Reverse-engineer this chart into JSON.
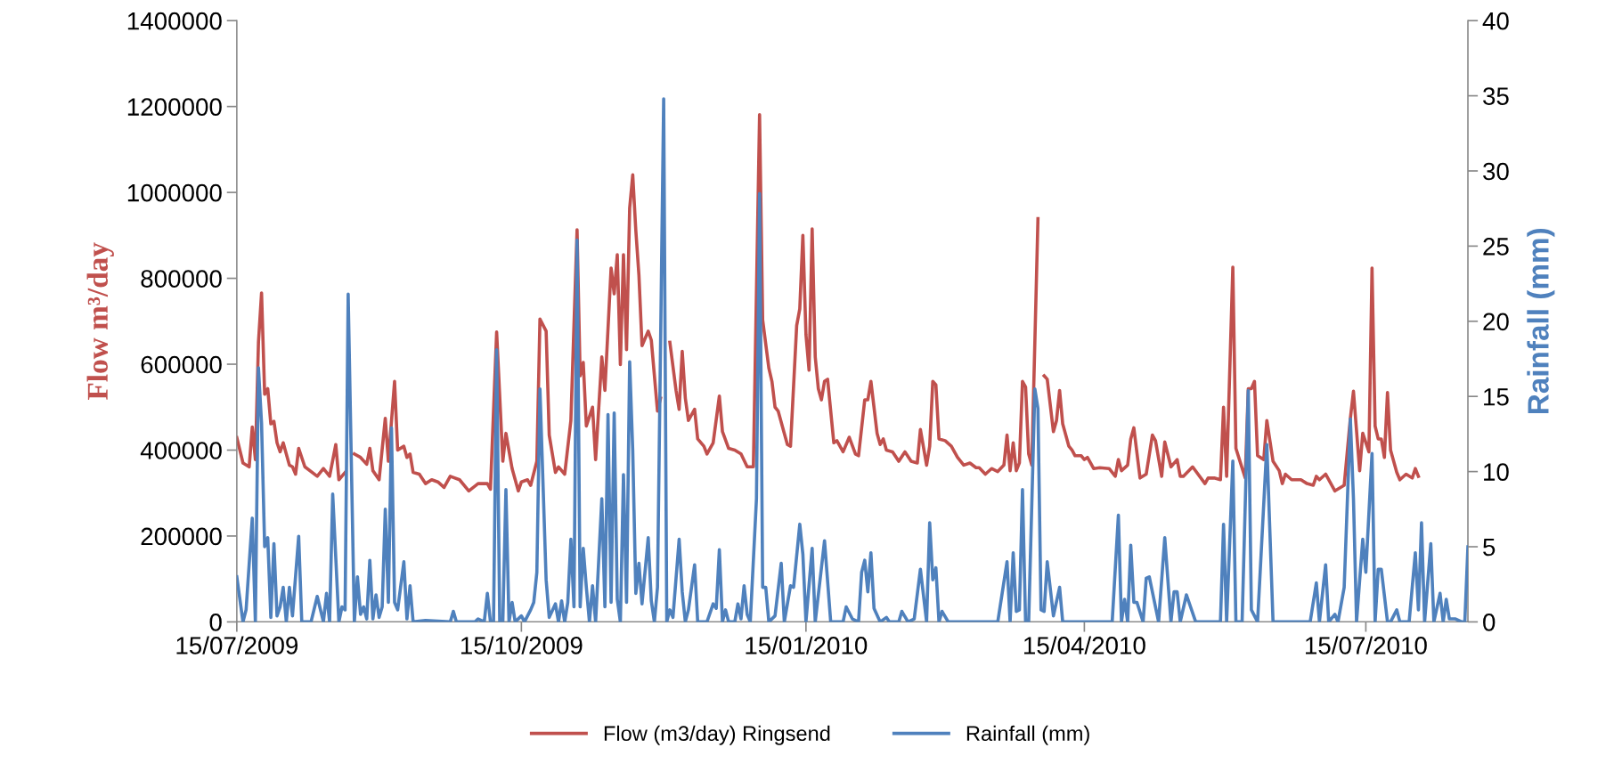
{
  "chart_data": {
    "type": "line",
    "ylabel": "Flow m³/day",
    "y2label": "Rainfall (mm)",
    "legend": "bottom",
    "grid": false,
    "marker": "none",
    "line_style": "solid",
    "xlim": [
      "2009-07-15",
      "2010-08-17"
    ],
    "xticks": [
      {
        "value": "2009-07-15",
        "label": "15/07/2009"
      },
      {
        "value": "2009-10-15",
        "label": "15/10/2009"
      },
      {
        "value": "2010-01-15",
        "label": "15/01/2010"
      },
      {
        "value": "2010-04-15",
        "label": "15/04/2010"
      },
      {
        "value": "2010-07-15",
        "label": "15/07/2010"
      }
    ],
    "ylim": [
      0,
      1400000
    ],
    "yticks": [
      0,
      200000,
      400000,
      600000,
      800000,
      1000000,
      1200000,
      1400000
    ],
    "y2lim": [
      0,
      40
    ],
    "y2ticks": [
      0,
      5,
      10,
      15,
      20,
      25,
      30,
      35,
      40
    ],
    "series": [
      {
        "name": "Flow (m3/day) Ringsend",
        "color": "#c0504d",
        "axis": "y",
        "x": [
          "2009-07-15",
          "2009-07-17",
          "2009-07-19",
          "2009-07-20",
          "2009-07-21",
          "2009-07-22",
          "2009-07-23",
          "2009-07-24",
          "2009-07-25",
          "2009-07-26",
          "2009-07-27",
          "2009-07-28",
          "2009-07-29",
          "2009-07-30",
          "2009-08-01",
          "2009-08-02",
          "2009-08-03",
          "2009-08-04",
          "2009-08-06",
          "2009-08-10",
          "2009-08-12",
          "2009-08-14",
          "2009-08-16",
          "2009-08-17",
          "2009-08-19",
          "2009-08-20",
          "2009-08-22",
          "2009-08-24",
          "2009-08-26",
          "2009-08-27",
          "2009-08-28",
          "2009-08-30",
          "2009-09-01",
          "2009-09-02",
          "2009-09-04",
          "2009-09-05",
          "2009-09-07",
          "2009-09-08",
          "2009-09-09",
          "2009-09-10",
          "2009-09-12",
          "2009-09-14",
          "2009-09-16",
          "2009-09-18",
          "2009-09-20",
          "2009-09-22",
          "2009-09-25",
          "2009-09-28",
          "2009-10-01",
          "2009-10-04",
          "2009-10-05",
          "2009-10-07",
          "2009-10-09",
          "2009-10-10",
          "2009-10-12",
          "2009-10-14",
          "2009-10-15",
          "2009-10-17",
          "2009-10-18",
          "2009-10-20",
          "2009-10-21",
          "2009-10-23",
          "2009-10-24",
          "2009-10-26",
          "2009-10-27",
          "2009-10-29",
          "2009-10-31",
          "2009-11-02",
          "2009-11-03",
          "2009-11-04",
          "2009-11-05",
          "2009-11-07",
          "2009-11-08",
          "2009-11-10",
          "2009-11-11",
          "2009-11-13",
          "2009-11-14",
          "2009-11-15",
          "2009-11-16",
          "2009-11-17",
          "2009-11-18",
          "2009-11-19",
          "2009-11-20",
          "2009-11-21",
          "2009-11-22",
          "2009-11-23",
          "2009-11-25",
          "2009-11-26",
          "2009-11-28",
          "2009-11-29",
          "2009-11-30",
          "2009-12-02",
          "2009-12-04",
          "2009-12-05",
          "2009-12-06",
          "2009-12-07",
          "2009-12-08",
          "2009-12-10",
          "2009-12-11",
          "2009-12-13",
          "2009-12-14",
          "2009-12-16",
          "2009-12-18",
          "2009-12-19",
          "2009-12-21",
          "2009-12-23",
          "2009-12-25",
          "2009-12-27",
          "2009-12-29",
          "2009-12-31",
          "2010-01-01",
          "2010-01-03",
          "2010-01-04",
          "2010-01-05",
          "2010-01-06",
          "2010-01-08",
          "2010-01-09",
          "2010-01-10",
          "2010-01-12",
          "2010-01-13",
          "2010-01-14",
          "2010-01-15",
          "2010-01-16",
          "2010-01-17",
          "2010-01-18",
          "2010-01-19",
          "2010-01-20",
          "2010-01-21",
          "2010-01-22",
          "2010-01-24",
          "2010-01-25",
          "2010-01-27",
          "2010-01-29",
          "2010-01-31",
          "2010-02-01",
          "2010-02-03",
          "2010-02-04",
          "2010-02-05",
          "2010-02-07",
          "2010-02-08",
          "2010-02-09",
          "2010-02-10",
          "2010-02-12",
          "2010-02-14",
          "2010-02-16",
          "2010-02-18",
          "2010-02-20",
          "2010-02-21",
          "2010-02-23",
          "2010-02-24",
          "2010-02-25",
          "2010-02-26",
          "2010-02-27",
          "2010-03-01",
          "2010-03-03",
          "2010-03-05",
          "2010-03-07",
          "2010-03-09",
          "2010-03-11",
          "2010-03-12",
          "2010-03-14",
          "2010-03-16",
          "2010-03-18",
          "2010-03-20",
          "2010-03-21",
          "2010-03-22",
          "2010-03-23",
          "2010-03-24",
          "2010-03-25",
          "2010-03-26",
          "2010-03-27",
          "2010-03-28",
          "2010-03-29",
          "2010-03-31",
          "2010-04-01",
          "2010-04-02",
          "2010-04-03",
          "2010-04-05",
          "2010-04-06",
          "2010-04-07",
          "2010-04-08",
          "2010-04-10",
          "2010-04-11",
          "2010-04-12",
          "2010-04-14",
          "2010-04-15",
          "2010-04-16",
          "2010-04-18",
          "2010-04-20",
          "2010-04-23",
          "2010-04-25",
          "2010-04-26",
          "2010-04-27",
          "2010-04-29",
          "2010-04-30",
          "2010-05-01",
          "2010-05-03",
          "2010-05-05",
          "2010-05-07",
          "2010-05-08",
          "2010-05-10",
          "2010-05-11",
          "2010-05-13",
          "2010-05-15",
          "2010-05-16",
          "2010-05-17",
          "2010-05-20",
          "2010-05-24",
          "2010-05-25",
          "2010-05-27",
          "2010-05-29",
          "2010-05-30",
          "2010-05-31",
          "2010-06-02",
          "2010-06-03",
          "2010-06-06",
          "2010-06-07",
          "2010-06-08",
          "2010-06-09",
          "2010-06-10",
          "2010-06-12",
          "2010-06-13",
          "2010-06-15",
          "2010-06-17",
          "2010-06-18",
          "2010-06-19",
          "2010-06-21",
          "2010-06-24",
          "2010-06-26",
          "2010-06-28",
          "2010-06-29",
          "2010-06-30",
          "2010-07-02",
          "2010-07-05",
          "2010-07-08",
          "2010-07-10",
          "2010-07-11",
          "2010-07-13",
          "2010-07-14",
          "2010-07-16",
          "2010-07-17",
          "2010-07-18",
          "2010-07-19",
          "2010-07-20",
          "2010-07-21",
          "2010-07-22",
          "2010-07-23",
          "2010-07-25",
          "2010-07-26",
          "2010-07-28",
          "2010-07-30",
          "2010-07-31",
          "2010-08-01"
        ],
        "values": [
          429000,
          370000,
          361000,
          454000,
          378000,
          651000,
          766000,
          530000,
          543000,
          461000,
          467000,
          417000,
          396000,
          417000,
          365000,
          361000,
          344000,
          404000,
          361000,
          339000,
          357000,
          339000,
          413000,
          331000,
          348000,
          null,
          391000,
          383000,
          367000,
          404000,
          352000,
          331000,
          474000,
          374000,
          560000,
          400000,
          409000,
          383000,
          391000,
          348000,
          344000,
          322000,
          331000,
          326000,
          313000,
          339000,
          331000,
          305000,
          322000,
          322000,
          309000,
          675000,
          374000,
          439000,
          357000,
          305000,
          326000,
          331000,
          318000,
          374000,
          705000,
          677000,
          435000,
          348000,
          361000,
          344000,
          469000,
          913000,
          573000,
          604000,
          456000,
          500000,
          378000,
          617000,
          539000,
          824000,
          764000,
          855000,
          599000,
          855000,
          634000,
          963000,
          1041000,
          911000,
          807000,
          643000,
          677000,
          656000,
          491000,
          521000,
          null,
          651000,
          539000,
          495000,
          630000,
          521000,
          469000,
          495000,
          426000,
          409000,
          391000,
          417000,
          526000,
          443000,
          404000,
          400000,
          391000,
          361000,
          361000,
          1181000,
          703000,
          591000,
          560000,
          500000,
          491000,
          439000,
          413000,
          409000,
          690000,
          729000,
          900000,
          669000,
          586000,
          915000,
          617000,
          543000,
          517000,
          560000,
          565000,
          417000,
          422000,
          396000,
          430000,
          391000,
          387000,
          517000,
          517000,
          560000,
          439000,
          413000,
          426000,
          400000,
          396000,
          374000,
          396000,
          374000,
          370000,
          448000,
          365000,
          409000,
          560000,
          552000,
          426000,
          422000,
          409000,
          383000,
          365000,
          370000,
          359000,
          359000,
          344000,
          357000,
          350000,
          365000,
          435000,
          352000,
          417000,
          352000,
          370000,
          560000,
          547000,
          391000,
          365000,
          939000,
          null,
          573000,
          565000,
          443000,
          469000,
          539000,
          461000,
          409000,
          400000,
          387000,
          387000,
          378000,
          383000,
          357000,
          359000,
          357000,
          339000,
          378000,
          352000,
          365000,
          426000,
          452000,
          335000,
          344000,
          435000,
          422000,
          339000,
          419000,
          361000,
          378000,
          339000,
          339000,
          361000,
          322000,
          335000,
          335000,
          331000,
          500000,
          339000,
          826000,
          404000,
          335000,
          543000,
          543000,
          560000,
          387000,
          378000,
          469000,
          374000,
          352000,
          322000,
          344000,
          331000,
          331000,
          322000,
          318000,
          339000,
          331000,
          344000,
          305000,
          318000,
          474000,
          537000,
          352000,
          439000,
          396000,
          824000,
          456000,
          426000,
          426000,
          383000,
          534000,
          400000,
          348000,
          331000,
          344000,
          335000,
          357000,
          339000
        ]
      },
      {
        "name": "Rainfall (mm)",
        "color": "#4f81bd",
        "axis": "y2",
        "x": [
          "2009-07-15",
          "2009-07-17",
          "2009-07-18",
          "2009-07-20",
          "2009-07-21",
          "2009-07-22",
          "2009-07-23",
          "2009-07-24",
          "2009-07-25",
          "2009-07-26",
          "2009-07-27",
          "2009-07-28",
          "2009-07-29",
          "2009-07-30",
          "2009-07-31",
          "2009-08-01",
          "2009-08-02",
          "2009-08-04",
          "2009-08-05",
          "2009-08-08",
          "2009-08-10",
          "2009-08-12",
          "2009-08-13",
          "2009-08-14",
          "2009-08-15",
          "2009-08-17",
          "2009-08-18",
          "2009-08-19",
          "2009-08-20",
          "2009-08-22",
          "2009-08-23",
          "2009-08-24",
          "2009-08-25",
          "2009-08-26",
          "2009-08-27",
          "2009-08-28",
          "2009-08-29",
          "2009-08-30",
          "2009-08-31",
          "2009-09-01",
          "2009-09-02",
          "2009-09-03",
          "2009-09-04",
          "2009-09-05",
          "2009-09-07",
          "2009-09-08",
          "2009-09-09",
          "2009-09-10",
          "2009-09-14",
          "2009-09-22",
          "2009-09-23",
          "2009-09-24",
          "2009-09-30",
          "2009-10-01",
          "2009-10-03",
          "2009-10-04",
          "2009-10-05",
          "2009-10-06",
          "2009-10-07",
          "2009-10-08",
          "2009-10-09",
          "2009-10-10",
          "2009-10-11",
          "2009-10-12",
          "2009-10-13",
          "2009-10-15",
          "2009-10-16",
          "2009-10-18",
          "2009-10-19",
          "2009-10-20",
          "2009-10-21",
          "2009-10-23",
          "2009-10-24",
          "2009-10-26",
          "2009-10-27",
          "2009-10-28",
          "2009-10-29",
          "2009-10-30",
          "2009-10-31",
          "2009-11-01",
          "2009-11-02",
          "2009-11-03",
          "2009-11-04",
          "2009-11-05",
          "2009-11-06",
          "2009-11-07",
          "2009-11-08",
          "2009-11-10",
          "2009-11-11",
          "2009-11-12",
          "2009-11-13",
          "2009-11-14",
          "2009-11-15",
          "2009-11-16",
          "2009-11-17",
          "2009-11-18",
          "2009-11-19",
          "2009-11-20",
          "2009-11-21",
          "2009-11-22",
          "2009-11-23",
          "2009-11-25",
          "2009-11-26",
          "2009-11-27",
          "2009-11-28",
          "2009-11-30",
          "2009-12-01",
          "2009-12-02",
          "2009-12-03",
          "2009-12-05",
          "2009-12-06",
          "2009-12-07",
          "2009-12-08",
          "2009-12-10",
          "2009-12-11",
          "2009-12-14",
          "2009-12-16",
          "2009-12-17",
          "2009-12-18",
          "2009-12-19",
          "2009-12-20",
          "2009-12-21",
          "2009-12-23",
          "2009-12-24",
          "2009-12-25",
          "2009-12-26",
          "2009-12-27",
          "2009-12-28",
          "2009-12-30",
          "2009-12-31",
          "2010-01-01",
          "2010-01-02",
          "2010-01-03",
          "2010-01-05",
          "2010-01-07",
          "2010-01-08",
          "2010-01-10",
          "2010-01-11",
          "2010-01-13",
          "2010-01-14",
          "2010-01-15",
          "2010-01-17",
          "2010-01-18",
          "2010-01-21",
          "2010-01-23",
          "2010-01-27",
          "2010-01-28",
          "2010-01-30",
          "2010-02-01",
          "2010-02-02",
          "2010-02-03",
          "2010-02-04",
          "2010-02-05",
          "2010-02-06",
          "2010-02-08",
          "2010-02-10",
          "2010-02-11",
          "2010-02-14",
          "2010-02-15",
          "2010-02-17",
          "2010-02-19",
          "2010-02-21",
          "2010-02-23",
          "2010-02-24",
          "2010-02-25",
          "2010-02-26",
          "2010-02-27",
          "2010-02-28",
          "2010-03-02",
          "2010-03-18",
          "2010-03-21",
          "2010-03-22",
          "2010-03-23",
          "2010-03-24",
          "2010-03-25",
          "2010-03-26",
          "2010-03-27",
          "2010-03-28",
          "2010-03-30",
          "2010-03-31",
          "2010-04-01",
          "2010-04-02",
          "2010-04-03",
          "2010-04-05",
          "2010-04-07",
          "2010-04-08",
          "2010-04-24",
          "2010-04-26",
          "2010-04-27",
          "2010-04-28",
          "2010-04-29",
          "2010-04-30",
          "2010-05-01",
          "2010-05-02",
          "2010-05-04",
          "2010-05-05",
          "2010-05-06",
          "2010-05-08",
          "2010-05-09",
          "2010-05-11",
          "2010-05-13",
          "2010-05-14",
          "2010-05-15",
          "2010-05-16",
          "2010-05-18",
          "2010-05-21",
          "2010-05-29",
          "2010-05-30",
          "2010-05-31",
          "2010-06-02",
          "2010-06-03",
          "2010-06-05",
          "2010-06-07",
          "2010-06-08",
          "2010-06-10",
          "2010-06-13",
          "2010-06-15",
          "2010-06-27",
          "2010-06-29",
          "2010-06-30",
          "2010-07-02",
          "2010-07-03",
          "2010-07-05",
          "2010-07-06",
          "2010-07-08",
          "2010-07-10",
          "2010-07-11",
          "2010-07-12",
          "2010-07-14",
          "2010-07-15",
          "2010-07-17",
          "2010-07-18",
          "2010-07-19",
          "2010-07-20",
          "2010-07-22",
          "2010-07-23",
          "2010-07-25",
          "2010-07-26",
          "2010-07-29",
          "2010-07-31",
          "2010-08-01",
          "2010-08-02",
          "2010-08-03",
          "2010-08-05",
          "2010-08-06",
          "2010-08-08",
          "2010-08-09",
          "2010-08-10",
          "2010-08-11",
          "2010-08-13",
          "2010-08-15",
          "2010-08-16",
          "2010-08-17"
        ],
        "values": [
          3.0,
          0,
          0.8,
          6.9,
          0,
          16.9,
          13.2,
          5.0,
          5.6,
          0.3,
          5.2,
          0.4,
          1.0,
          2.3,
          0,
          2.3,
          0.4,
          5.7,
          0,
          0,
          1.7,
          0,
          1.9,
          0,
          8.5,
          0,
          1.0,
          0.8,
          21.8,
          0,
          3.0,
          0.5,
          1.0,
          0.2,
          4.1,
          0.2,
          1.8,
          0.3,
          1.0,
          7.5,
          1.3,
          12.9,
          1.3,
          0.8,
          4.0,
          0.2,
          2.4,
          0,
          0.1,
          0,
          0.7,
          0,
          0,
          0.2,
          0,
          1.9,
          0,
          0,
          18.1,
          0,
          0,
          8.8,
          0,
          1.3,
          0,
          0.4,
          0,
          0.8,
          1.3,
          3.3,
          15.5,
          2.8,
          0.3,
          1.2,
          0,
          1.4,
          0,
          1.3,
          5.5,
          1.0,
          25.4,
          1.0,
          4.9,
          2.3,
          0,
          2.4,
          0,
          8.2,
          1.0,
          13.8,
          1.3,
          13.9,
          1.5,
          0,
          9.8,
          1.3,
          17.3,
          11.4,
          1.9,
          3.9,
          1.2,
          5.6,
          1.4,
          0,
          2.3,
          34.8,
          0,
          0.8,
          0.3,
          5.5,
          2.0,
          0,
          0.8,
          3.8,
          0,
          0,
          1.2,
          0.9,
          4.8,
          0,
          0.8,
          0,
          0,
          1.2,
          0.2,
          2.4,
          0.5,
          0,
          8.2,
          28.5,
          2.3,
          2.3,
          0,
          0.4,
          3.9,
          0,
          2.4,
          2.3,
          6.5,
          4.5,
          0,
          4.9,
          0,
          5.4,
          0,
          0,
          1.0,
          0.2,
          0,
          3.3,
          4.1,
          2.0,
          4.6,
          0.9,
          0,
          0.3,
          0,
          0,
          0.7,
          0,
          0.2,
          3.5,
          0,
          6.6,
          2.8,
          3.6,
          0,
          0.7,
          0,
          0,
          4.0,
          0,
          4.6,
          0.7,
          0.8,
          8.8,
          0,
          0,
          15.5,
          14.2,
          0.8,
          0.7,
          4.0,
          0.4,
          2.3,
          0,
          0,
          7.1,
          0,
          1.5,
          0,
          5.1,
          1.3,
          1.3,
          0,
          2.9,
          3.0,
          1.0,
          0,
          5.6,
          0,
          2.0,
          2.0,
          0,
          1.8,
          0,
          0,
          6.5,
          0,
          10.7,
          0,
          0,
          15.4,
          0.8,
          0,
          11.8,
          0,
          0,
          2.6,
          0,
          3.8,
          0,
          0.5,
          0,
          2.3,
          13.5,
          8.2,
          0,
          5.5,
          3.3,
          11.2,
          0,
          3.5,
          3.5,
          0,
          0,
          0.8,
          0,
          0,
          4.6,
          0.8,
          6.6,
          0,
          5.2,
          0,
          1.9,
          0,
          1.5,
          0.2,
          0.2,
          0,
          0,
          5.0
        ]
      }
    ]
  }
}
